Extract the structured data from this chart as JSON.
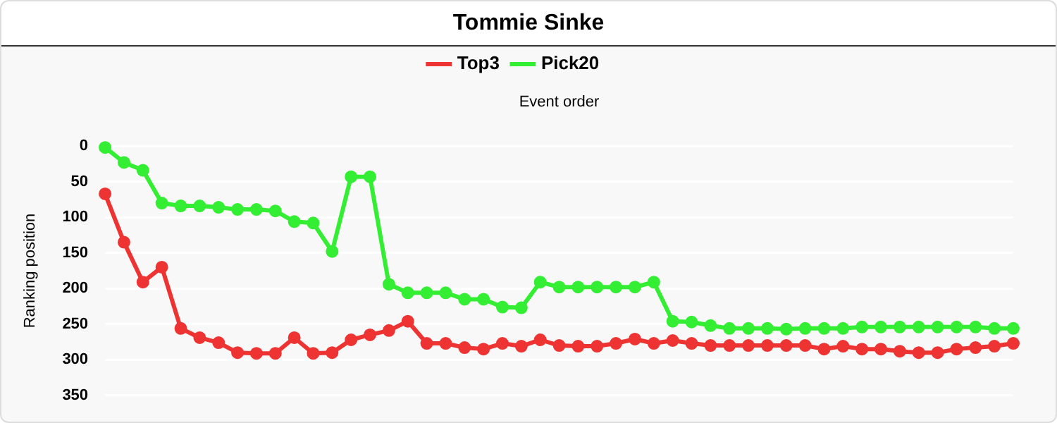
{
  "chart_data": {
    "type": "line",
    "title": "Tommie Sinke",
    "xlabel": "Event order",
    "ylabel": "Ranking position",
    "categories": [
      null,
      null,
      null,
      null,
      null,
      null,
      null,
      null,
      null,
      null,
      null,
      null,
      null,
      null,
      null,
      null,
      null,
      null,
      null,
      null,
      null,
      null,
      null,
      null,
      null,
      null,
      null,
      null,
      null,
      null,
      null,
      null,
      null,
      null,
      null,
      null,
      null,
      null,
      null,
      null,
      null,
      null,
      null,
      null,
      null,
      null,
      null,
      null,
      null
    ],
    "series": [
      {
        "name": "Top3",
        "color": "#ee3333",
        "values": [
          67,
          135,
          191,
          170,
          256,
          269,
          276,
          290,
          291,
          291,
          269,
          291,
          290,
          272,
          265,
          259,
          246,
          277,
          277,
          283,
          285,
          277,
          281,
          272,
          280,
          281,
          281,
          277,
          271,
          277,
          273,
          277,
          280,
          280,
          280,
          280,
          280,
          280,
          285,
          281,
          285,
          285,
          288,
          290,
          290,
          285,
          283,
          281,
          277
        ]
      },
      {
        "name": "Pick20",
        "color": "#33ee33",
        "values": [
          2,
          23,
          34,
          80,
          84,
          84,
          86,
          89,
          89,
          91,
          106,
          108,
          148,
          43,
          43,
          194,
          206,
          206,
          206,
          215,
          215,
          226,
          227,
          191,
          198,
          198,
          198,
          198,
          198,
          191,
          246,
          247,
          252,
          256,
          256,
          256,
          257,
          256,
          256,
          256,
          254,
          254,
          254,
          254,
          254,
          254,
          254,
          256,
          256
        ]
      }
    ],
    "ylim": [
      350,
      0
    ],
    "yticks": [
      0,
      50,
      100,
      150,
      200,
      250,
      300,
      350
    ],
    "grid": "y",
    "legend": "top",
    "marker": "circle",
    "line_style": "solid"
  }
}
